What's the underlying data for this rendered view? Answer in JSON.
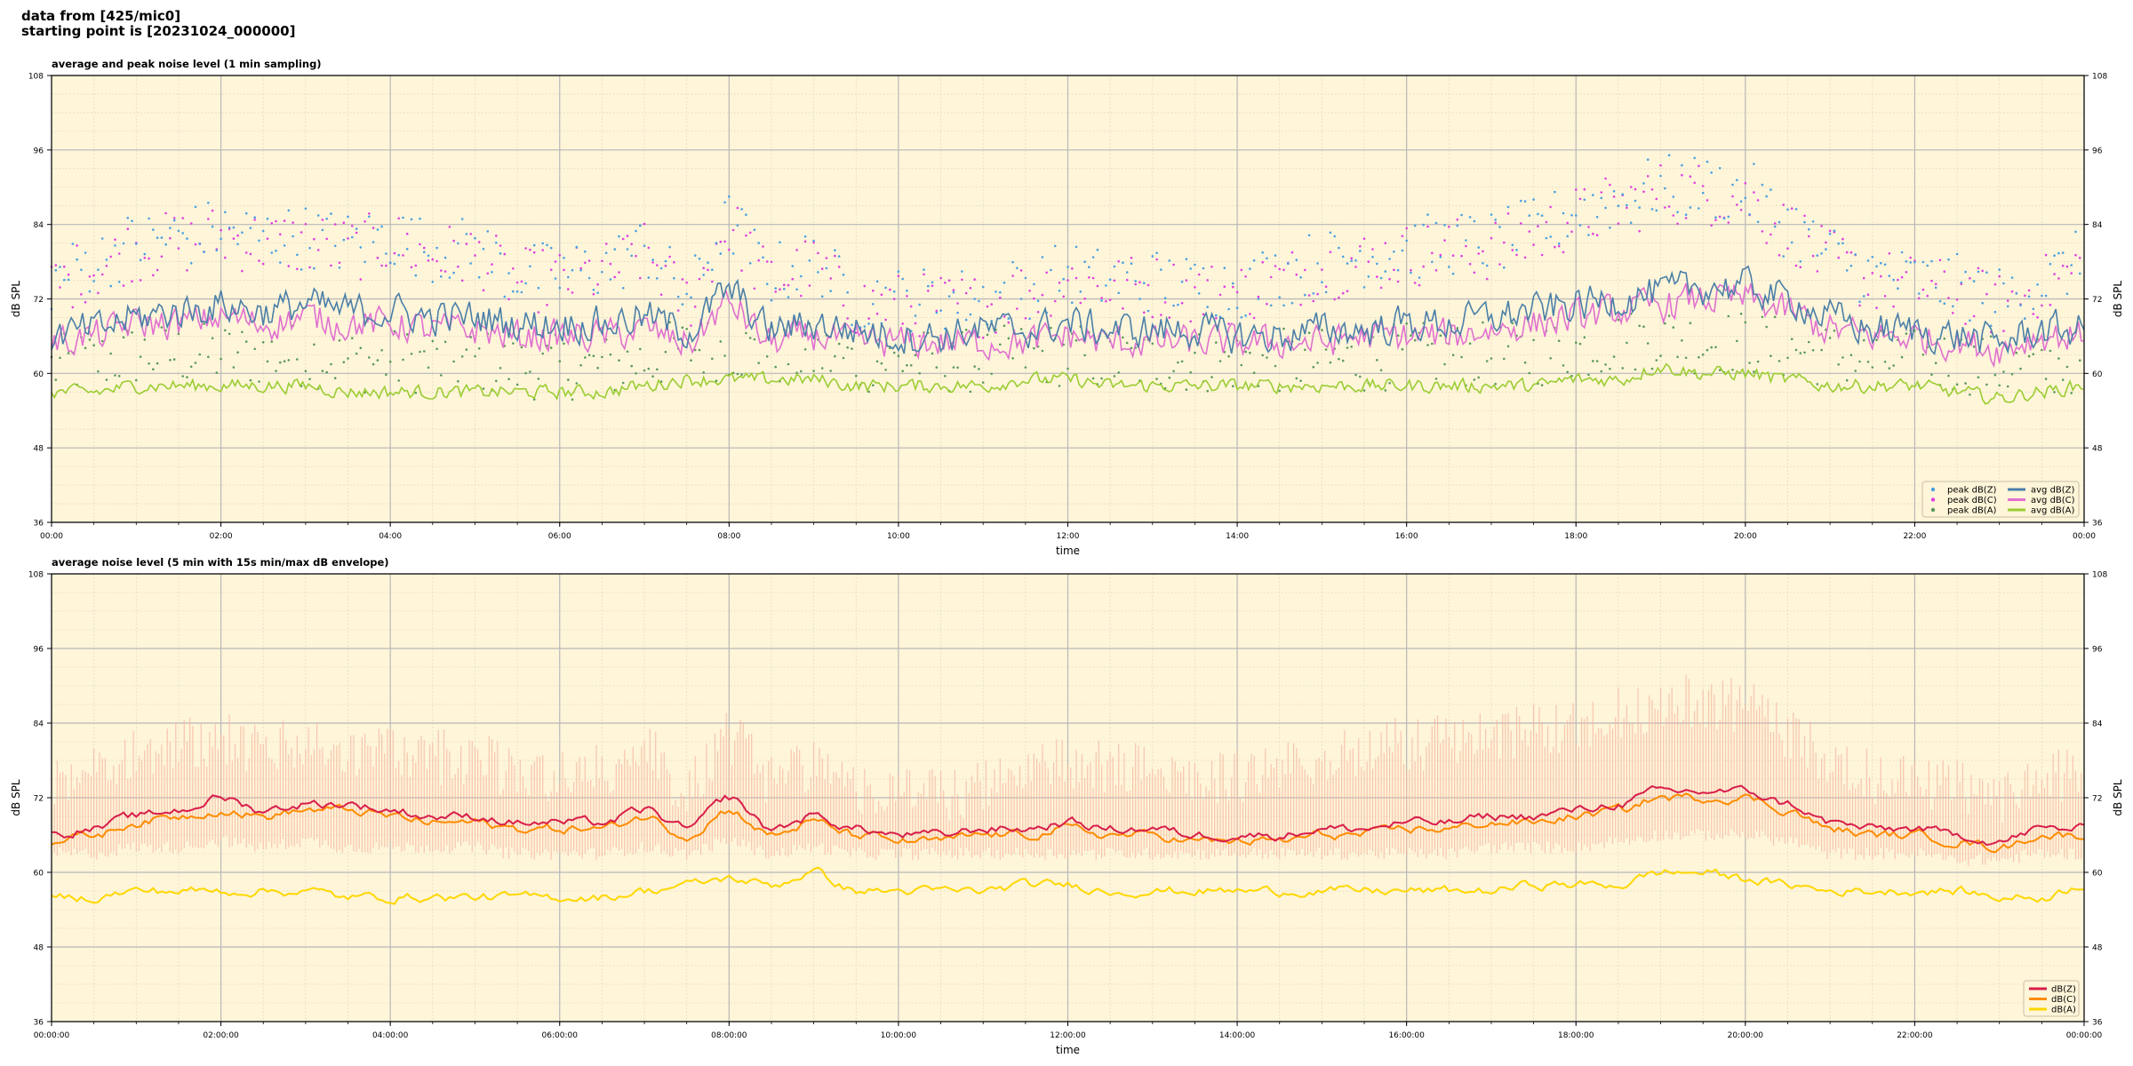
{
  "header": {
    "line1": "data from [425/mic0]",
    "line2": "starting point is [20231024_000000]"
  },
  "colors": {
    "plot_bg": "#fff5d9",
    "grid_major": "#b8b8b8",
    "grid_minor": "#e4dcc4",
    "peak_z": "#4aa0e0",
    "peak_c": "#e040e0",
    "peak_a": "#5a9a5a",
    "avg_z": "#4a7fa8",
    "avg_c": "#e070d0",
    "avg_a": "#9acd32",
    "env_fill": "#f5b5a0",
    "line_z": "#d81e4a",
    "line_c": "#ff8c00",
    "line_a": "#ffd700"
  },
  "chart_data": [
    {
      "type": "line",
      "title": "average and peak noise level (1 min sampling)",
      "xlabel": "time",
      "ylabel": "dB SPL",
      "ylabel_right": "dB SPL",
      "ylim": [
        36,
        108
      ],
      "xlim_hours": [
        0,
        24
      ],
      "yticks": [
        "36",
        "48",
        "60",
        "72",
        "84",
        "96",
        "108"
      ],
      "xticks": [
        "00:00",
        "02:00",
        "04:00",
        "06:00",
        "08:00",
        "10:00",
        "12:00",
        "14:00",
        "16:00",
        "18:00",
        "20:00",
        "22:00",
        "00:00"
      ],
      "grid": true,
      "legend_position": "lower-right",
      "legend": [
        "peak dB(Z)",
        "peak dB(C)",
        "peak dB(A)",
        "avg dB(Z)",
        "avg dB(C)",
        "avg dB(A)"
      ],
      "x": [
        0,
        0.5,
        1,
        1.5,
        2,
        2.5,
        3,
        3.5,
        4,
        4.5,
        5,
        5.5,
        6,
        6.5,
        7,
        7.5,
        8,
        8.5,
        9,
        9.5,
        10,
        10.5,
        11,
        11.5,
        12,
        12.5,
        13,
        13.5,
        14,
        14.5,
        15,
        15.5,
        16,
        16.5,
        17,
        17.5,
        18,
        18.5,
        19,
        19.5,
        20,
        20.5,
        21,
        21.5,
        22,
        22.5,
        23,
        23.5,
        24
      ],
      "series": [
        {
          "name": "avg dB(Z)",
          "values": [
            66,
            67,
            69,
            70,
            71,
            70,
            71,
            70,
            70,
            69,
            69,
            68,
            68,
            68,
            69,
            67,
            73,
            67,
            68,
            67,
            66,
            66,
            67,
            67,
            68,
            67,
            67,
            67,
            66,
            66,
            67,
            67,
            68,
            68,
            69,
            70,
            71,
            72,
            73,
            74,
            74,
            72,
            69,
            67,
            67,
            66,
            65,
            67,
            67
          ]
        },
        {
          "name": "avg dB(C)",
          "values": [
            65,
            66,
            68,
            68,
            69,
            68,
            69,
            68,
            68,
            67,
            67,
            66,
            66,
            66,
            67,
            65,
            71,
            65,
            66,
            65,
            65,
            65,
            65,
            65,
            66,
            65,
            65,
            65,
            65,
            65,
            65,
            66,
            66,
            66,
            67,
            68,
            69,
            70,
            71,
            72,
            72,
            70,
            67,
            66,
            66,
            65,
            64,
            66,
            66
          ]
        },
        {
          "name": "avg dB(A)",
          "values": [
            57,
            57,
            58,
            58,
            58,
            58,
            58,
            57,
            57,
            57,
            57,
            57,
            57,
            57,
            58,
            59,
            59,
            59,
            59,
            58,
            58,
            58,
            58,
            59,
            59,
            58,
            58,
            58,
            58,
            58,
            58,
            58,
            58,
            58,
            58,
            58,
            59,
            59,
            61,
            60,
            60,
            59,
            58,
            58,
            58,
            57,
            56,
            57,
            58
          ]
        },
        {
          "name": "peak dB(Z)",
          "values": [
            75,
            78,
            81,
            82,
            83,
            82,
            82,
            81,
            82,
            80,
            80,
            76,
            76,
            77,
            80,
            73,
            84,
            76,
            78,
            72,
            72,
            72,
            72,
            74,
            76,
            75,
            75,
            74,
            74,
            76,
            78,
            79,
            80,
            81,
            81,
            83,
            86,
            88,
            90,
            90,
            89,
            84,
            79,
            76,
            75,
            74,
            72,
            75,
            78
          ]
        },
        {
          "name": "peak dB(C)",
          "values": [
            74,
            77,
            80,
            81,
            82,
            81,
            81,
            80,
            81,
            79,
            79,
            75,
            75,
            76,
            79,
            72,
            83,
            75,
            77,
            71,
            71,
            71,
            71,
            73,
            75,
            74,
            74,
            73,
            73,
            75,
            77,
            78,
            79,
            80,
            80,
            82,
            85,
            87,
            89,
            89,
            88,
            83,
            78,
            75,
            74,
            73,
            71,
            74,
            77
          ]
        },
        {
          "name": "peak dB(A)",
          "values": [
            61,
            62,
            63,
            63,
            63,
            63,
            63,
            62,
            62,
            62,
            62,
            61,
            61,
            61,
            62,
            64,
            64,
            63,
            63,
            62,
            62,
            62,
            62,
            63,
            63,
            62,
            62,
            62,
            62,
            62,
            62,
            62,
            63,
            63,
            63,
            63,
            64,
            65,
            66,
            65,
            65,
            64,
            63,
            62,
            62,
            62,
            61,
            61,
            62
          ]
        }
      ]
    },
    {
      "type": "area",
      "title": "average noise level (5 min with 15s min/max dB envelope)",
      "xlabel": "time",
      "ylabel": "dB SPL",
      "ylabel_right": "dB SPL",
      "ylim": [
        36,
        108
      ],
      "xlim_hours": [
        0,
        24
      ],
      "yticks": [
        "36",
        "48",
        "60",
        "72",
        "84",
        "96",
        "108"
      ],
      "xticks": [
        "00:00:00",
        "02:00:00",
        "04:00:00",
        "06:00:00",
        "08:00:00",
        "10:00:00",
        "12:00:00",
        "14:00:00",
        "16:00:00",
        "18:00:00",
        "20:00:00",
        "22:00:00",
        "00:00:00"
      ],
      "grid": true,
      "legend_position": "lower-right",
      "legend": [
        "dB(Z)",
        "dB(C)",
        "dB(A)"
      ],
      "x": [
        0,
        0.5,
        1,
        1.5,
        2,
        2.5,
        3,
        3.5,
        4,
        4.5,
        5,
        5.5,
        6,
        6.5,
        7,
        7.5,
        8,
        8.5,
        9,
        9.5,
        10,
        10.5,
        11,
        11.5,
        12,
        12.5,
        13,
        13.5,
        14,
        14.5,
        15,
        15.5,
        16,
        16.5,
        17,
        17.5,
        18,
        18.5,
        19,
        19.5,
        20,
        20.5,
        21,
        21.5,
        22,
        22.5,
        23,
        23.5,
        24
      ],
      "series": [
        {
          "name": "dB(Z)",
          "values": [
            66,
            67,
            69,
            70,
            72,
            70,
            71,
            71,
            70,
            69,
            69,
            68,
            68,
            68,
            70,
            67,
            72,
            67,
            69,
            67,
            66,
            66,
            67,
            67,
            68,
            67,
            67,
            66,
            66,
            66,
            67,
            67,
            68,
            68,
            69,
            69,
            70,
            71,
            73,
            73,
            73,
            71,
            68,
            67,
            67,
            66,
            65,
            67,
            67
          ]
        },
        {
          "name": "dB(C)",
          "values": [
            65,
            66,
            68,
            69,
            70,
            69,
            70,
            70,
            69,
            68,
            68,
            67,
            67,
            67,
            69,
            66,
            70,
            66,
            68,
            66,
            65,
            65,
            66,
            66,
            67,
            66,
            66,
            65,
            65,
            65,
            66,
            66,
            67,
            67,
            68,
            68,
            69,
            70,
            72,
            72,
            72,
            70,
            67,
            66,
            66,
            65,
            64,
            66,
            66
          ]
        },
        {
          "name": "dB(A)",
          "values": [
            56,
            56,
            57,
            57,
            57,
            57,
            57,
            56,
            56,
            56,
            56,
            56,
            56,
            56,
            57,
            58,
            59,
            58,
            60,
            57,
            57,
            57,
            57,
            58,
            58,
            57,
            57,
            57,
            57,
            57,
            57,
            57,
            57,
            57,
            57,
            58,
            58,
            58,
            60,
            60,
            59,
            58,
            57,
            57,
            57,
            57,
            56,
            56,
            58
          ]
        },
        {
          "name": "envelope max",
          "values": [
            78,
            82,
            84,
            85,
            86,
            84,
            85,
            84,
            84,
            83,
            83,
            80,
            80,
            81,
            84,
            78,
            86,
            80,
            82,
            78,
            77,
            77,
            78,
            80,
            82,
            81,
            81,
            80,
            80,
            81,
            83,
            84,
            85,
            86,
            86,
            87,
            88,
            90,
            92,
            92,
            91,
            87,
            83,
            80,
            79,
            78,
            77,
            79,
            82
          ]
        },
        {
          "name": "envelope min",
          "values": [
            63,
            63,
            64,
            64,
            65,
            64,
            65,
            64,
            64,
            64,
            64,
            63,
            63,
            63,
            64,
            63,
            65,
            63,
            64,
            63,
            63,
            63,
            63,
            63,
            63,
            63,
            63,
            63,
            63,
            63,
            63,
            63,
            63,
            63,
            64,
            64,
            64,
            65,
            66,
            66,
            66,
            65,
            63,
            63,
            63,
            62,
            62,
            63,
            63
          ]
        }
      ]
    }
  ]
}
